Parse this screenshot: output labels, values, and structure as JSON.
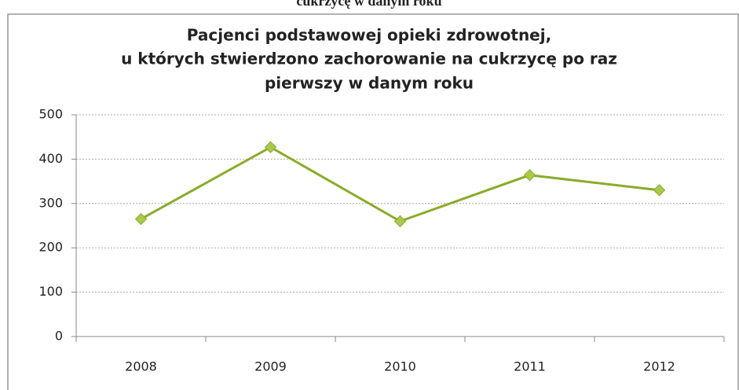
{
  "header_text": "cukrzycę w danym roku",
  "chart_data": {
    "type": "line",
    "title": [
      "Pacjenci podstawowej opieki zdrowotnej,",
      "u których stwierdzono zachorowanie na cukrzycę po raz",
      "pierwszy w danym roku"
    ],
    "categories": [
      "2008",
      "2009",
      "2010",
      "2011",
      "2012"
    ],
    "values": [
      265,
      427,
      260,
      364,
      330
    ],
    "color": "#8aab2a",
    "marker_color": "#a9c84c",
    "ylim": [
      0,
      500
    ],
    "yticks": [
      0,
      100,
      200,
      300,
      400,
      500
    ],
    "grid": true
  }
}
